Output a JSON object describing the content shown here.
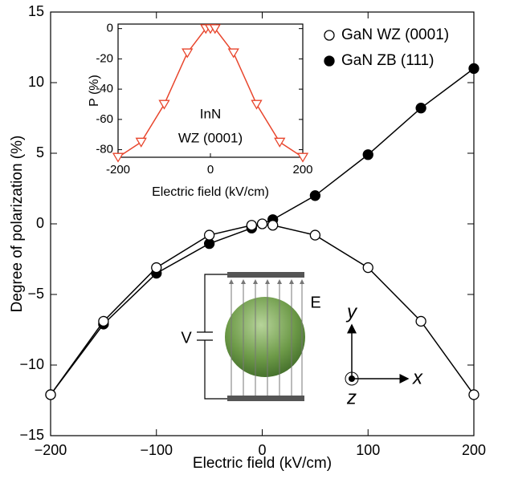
{
  "chart_data": [
    {
      "type": "line",
      "xlabel": "Electric field (kV/cm)",
      "ylabel": "Degree of polarization (%)",
      "xlim": [
        -200,
        200
      ],
      "ylim": [
        -15,
        15
      ],
      "xticks": [
        {
          "value": -200,
          "label": "−200"
        },
        {
          "value": -100,
          "label": "−100"
        },
        0,
        100,
        200
      ],
      "yticks": [
        {
          "value": -15,
          "label": "−15"
        },
        {
          "value": -10,
          "label": "−10"
        },
        {
          "value": -5,
          "label": "−5"
        },
        0,
        5,
        10,
        15
      ],
      "legend": "upper right",
      "series": [
        {
          "name": "GaN ZB (111)",
          "color": "#000000",
          "marker": "filled-circle",
          "x": [
            -200,
            -150,
            -100,
            -50,
            -10,
            10,
            50,
            100,
            150,
            200
          ],
          "values": [
            -12.1,
            -7.1,
            -3.5,
            -1.4,
            -0.3,
            0.3,
            2.0,
            4.9,
            8.2,
            11.0
          ]
        },
        {
          "name": "GaN WZ (0001)",
          "color": "#000000",
          "marker": "open-circle",
          "x": [
            -200,
            -150,
            -100,
            -50,
            -10,
            0,
            10,
            50,
            100,
            150,
            200
          ],
          "values": [
            -12.1,
            -6.9,
            -3.1,
            -0.8,
            -0.1,
            0,
            -0.1,
            -0.8,
            -3.1,
            -6.9,
            -12.1
          ]
        }
      ],
      "annotations": [
        "V",
        "E",
        "y",
        "x",
        "z"
      ]
    },
    {
      "type": "line",
      "xlabel": "Electric field (kV/cm)",
      "ylabel": "P (%)",
      "xlim": [
        -200,
        200
      ],
      "ylim": [
        -85,
        3
      ],
      "xticks": [
        -200,
        0,
        200
      ],
      "yticks": [
        0,
        -20,
        -40,
        -60,
        -80
      ],
      "series": [
        {
          "color": "#e8452c",
          "marker": "open-triangle",
          "x": [
            -200,
            -150,
            -100,
            -50,
            -10,
            0,
            10,
            50,
            100,
            150,
            200
          ],
          "values": [
            -85,
            -75,
            -50,
            -16,
            0,
            0,
            0,
            -16,
            -50,
            -75,
            -85
          ]
        }
      ],
      "annotations": [
        "InN",
        "WZ (0001)"
      ]
    }
  ]
}
